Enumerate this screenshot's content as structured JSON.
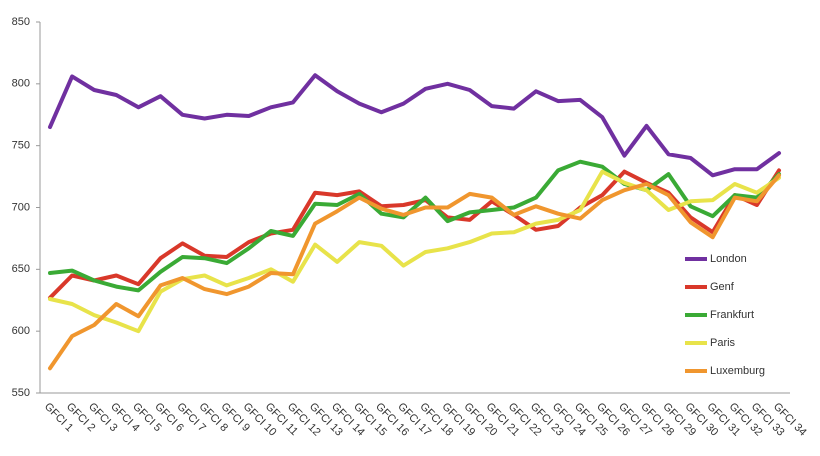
{
  "chart_data": {
    "type": "line",
    "categories": [
      "GFCI 1",
      "GFCI 2",
      "GFCI 3",
      "GFCI 4",
      "GFCI 5",
      "GFCI 6",
      "GFCI 7",
      "GFCI 8",
      "GFCI 9",
      "GFCI 10",
      "GFCI 11",
      "GFCI 12",
      "GFCI 13",
      "GFCI 14",
      "GFCI 15",
      "GFCI 16",
      "GFCI 17",
      "GFCI 18",
      "GFCI 19",
      "GFCI 20",
      "GFCI 21",
      "GFCI 22",
      "GFCI 23",
      "GFCI 24",
      "GFCI 25",
      "GFCI 26",
      "GFCI 27",
      "GFCI 28",
      "GFCI 29",
      "GFCI 30",
      "GFCI 31",
      "GFCI 32",
      "GFCI 33",
      "GFCI 34"
    ],
    "series": [
      {
        "name": "London",
        "color": "#7030a0",
        "values": [
          765,
          806,
          795,
          791,
          781,
          790,
          775,
          772,
          775,
          774,
          781,
          785,
          807,
          794,
          784,
          777,
          784,
          796,
          800,
          795,
          782,
          780,
          794,
          786,
          787,
          773,
          742,
          766,
          743,
          740,
          726,
          731,
          731,
          744
        ]
      },
      {
        "name": "Genf",
        "color": "#d9382a",
        "values": [
          627,
          645,
          641,
          645,
          638,
          659,
          671,
          661,
          660,
          672,
          679,
          682,
          712,
          710,
          713,
          701,
          702,
          706,
          692,
          690,
          705,
          694,
          682,
          685,
          700,
          710,
          729,
          720,
          712,
          692,
          680,
          710,
          702,
          730
        ]
      },
      {
        "name": "Frankfurt",
        "color": "#3aaa35",
        "values": [
          647,
          649,
          641,
          636,
          633,
          648,
          660,
          659,
          655,
          667,
          681,
          677,
          703,
          702,
          711,
          695,
          692,
          708,
          689,
          696,
          698,
          700,
          708,
          730,
          737,
          733,
          719,
          714,
          727,
          701,
          693,
          710,
          708,
          727
        ]
      },
      {
        "name": "Paris",
        "color": "#e8e34a",
        "values": [
          626,
          622,
          613,
          607,
          600,
          632,
          642,
          645,
          637,
          643,
          650,
          640,
          670,
          656,
          672,
          669,
          653,
          664,
          667,
          672,
          679,
          680,
          687,
          690,
          698,
          729,
          720,
          714,
          698,
          705,
          706,
          719,
          712,
          724
        ]
      },
      {
        "name": "Luxemburg",
        "color": "#f0962e",
        "values": [
          570,
          596,
          605,
          622,
          612,
          637,
          643,
          634,
          630,
          636,
          647,
          646,
          687,
          697,
          708,
          699,
          694,
          700,
          700,
          711,
          708,
          694,
          701,
          695,
          691,
          706,
          714,
          719,
          710,
          688,
          676,
          708,
          705,
          726
        ]
      }
    ],
    "ylim": [
      550,
      850
    ],
    "yticks": [
      550,
      600,
      650,
      700,
      750,
      800,
      850
    ],
    "grid": false,
    "legend": "right"
  }
}
